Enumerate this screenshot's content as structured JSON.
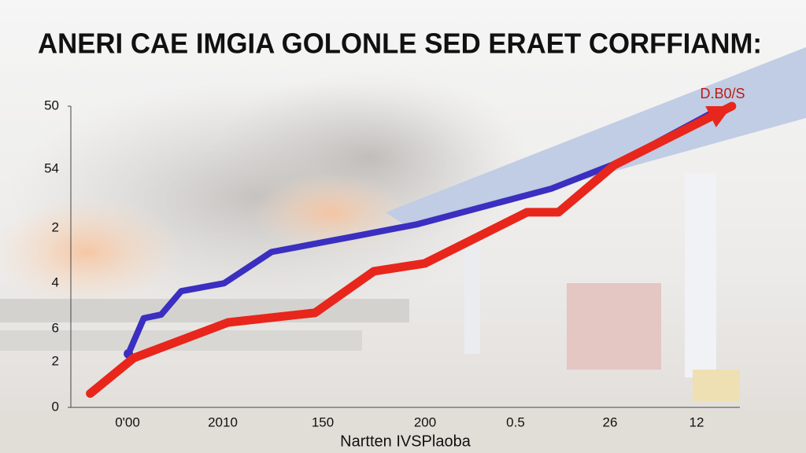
{
  "chart_data": {
    "type": "line",
    "title": "ANERI CAE IMGIA GOLONLE SED ERAET CORFFIANM:",
    "x_label": "Nartten IVSPlaoba",
    "annotation": "D.B0/S",
    "xlim": [
      0,
      100
    ],
    "ylim": [
      0,
      50
    ],
    "yticks": [
      0,
      50
    ],
    "y_labels": [
      "54",
      "2",
      "4",
      "6",
      "2"
    ],
    "x_labels": [
      "0'00",
      "2010",
      "150",
      "200",
      "0.5",
      "26",
      "12"
    ],
    "series": [
      {
        "name": "Blue",
        "color": "#3a2fc0",
        "x": [
          8.6,
          10.9,
          13.5,
          16.5,
          22.9,
          30,
          42.9,
          51.8,
          71.8,
          82.4,
          96.5
        ],
        "values": [
          8.9,
          14.8,
          15.4,
          19.3,
          20.6,
          25.8,
          28.5,
          30.4,
          36.3,
          40.9,
          49.3
        ]
      },
      {
        "name": "Red",
        "color": "#e8261c",
        "x": [
          2.9,
          9.4,
          23.5,
          36.5,
          45.3,
          52.9,
          68.2,
          72.9,
          81.2,
          98.8
        ],
        "values": [
          2.3,
          8.2,
          14.1,
          15.7,
          22.6,
          23.9,
          32.4,
          32.4,
          40.2,
          50
        ]
      }
    ]
  }
}
